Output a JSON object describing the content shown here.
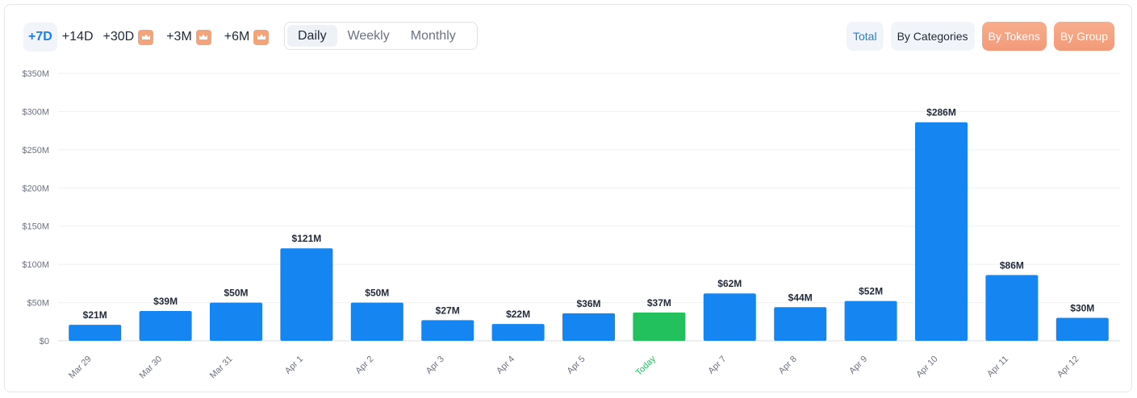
{
  "time_ranges": [
    {
      "label": "+7D",
      "active": true,
      "premium": false
    },
    {
      "label": "+14D",
      "active": false,
      "premium": false
    },
    {
      "label": "+30D",
      "active": false,
      "premium": true
    },
    {
      "label": "+3M",
      "active": false,
      "premium": true
    },
    {
      "label": "+6M",
      "active": false,
      "premium": true
    }
  ],
  "periods": [
    {
      "label": "Daily",
      "active": true
    },
    {
      "label": "Weekly",
      "active": false
    },
    {
      "label": "Monthly",
      "active": false
    }
  ],
  "views": [
    {
      "label": "Total",
      "style": "total"
    },
    {
      "label": "By Categories",
      "style": "cat"
    },
    {
      "label": "By Tokens",
      "style": "premium"
    },
    {
      "label": "By Group",
      "style": "premium"
    }
  ],
  "colors": {
    "bar": "#1585f2",
    "today_bar": "#22c15e",
    "today_label": "#22c15e",
    "accent": "#1a7fe8",
    "premium": "#f4a47a"
  },
  "chart_data": {
    "type": "bar",
    "categories": [
      "Mar 29",
      "Mar 30",
      "Mar 31",
      "Apr 1",
      "Apr 2",
      "Apr 3",
      "Apr 4",
      "Apr 5",
      "Today",
      "Apr 7",
      "Apr 8",
      "Apr 9",
      "Apr 10",
      "Apr 11",
      "Apr 12"
    ],
    "values": [
      21,
      39,
      50,
      121,
      50,
      27,
      22,
      36,
      37,
      62,
      44,
      52,
      286,
      86,
      30
    ],
    "data_labels": [
      "$21M",
      "$39M",
      "$50M",
      "$121M",
      "$50M",
      "$27M",
      "$22M",
      "$36M",
      "$37M",
      "$62M",
      "$44M",
      "$52M",
      "$286M",
      "$86M",
      "$30M"
    ],
    "highlight_category": "Today",
    "yticks": [
      0,
      50,
      100,
      150,
      200,
      250,
      300,
      350
    ],
    "ytick_labels": [
      "$0",
      "$50M",
      "$100M",
      "$150M",
      "$200M",
      "$250M",
      "$300M",
      "$350M"
    ],
    "ylim": [
      0,
      350
    ],
    "unit": "$M",
    "grid": true,
    "title": "",
    "xlabel": "",
    "ylabel": ""
  }
}
